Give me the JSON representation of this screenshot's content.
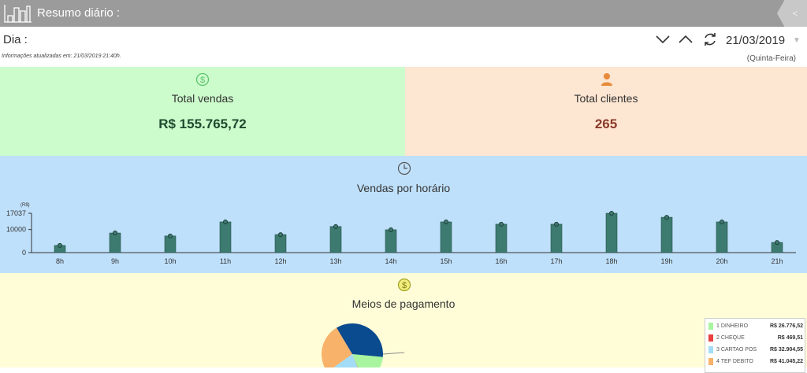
{
  "header": {
    "title": "Resumo diário :",
    "back_label": "<"
  },
  "filter": {
    "label": "Dia :",
    "updated": "Informações atualizadas em: 21/03/2019 21:40h.",
    "date": "21/03/2019",
    "weekday": "(Quinta-Feira)"
  },
  "cards": {
    "sales": {
      "label": "Total vendas",
      "value": "R$ 155.765,72",
      "icon": "dollar-circle-icon",
      "color": "#1e4a2e",
      "bg": "#ccfccc"
    },
    "clients": {
      "label": "Total clientes",
      "value": "265",
      "icon": "user-icon",
      "color": "#8b3a2a",
      "bg": "#fde6d2"
    }
  },
  "hourly": {
    "title": "Vendas por horário",
    "icon": "clock-icon",
    "bg": "#bfe0fb"
  },
  "payments": {
    "title": "Meios de pagamento",
    "icon": "dollar-circle-icon",
    "bg": "#fffdd8"
  },
  "chart_data": [
    {
      "type": "bar",
      "title": "Vendas por horário",
      "ylabel": "(R$)",
      "ylim": [
        0,
        17037
      ],
      "yticks": [
        "0",
        "10000",
        "17037"
      ],
      "categories": [
        "8h",
        "9h",
        "10h",
        "11h",
        "12h",
        "13h",
        "14h",
        "15h",
        "16h",
        "17h",
        "18h",
        "19h",
        "20h",
        "21h"
      ],
      "values": [
        3100,
        8500,
        7200,
        13300,
        7800,
        11300,
        9900,
        13300,
        12300,
        12300,
        17037,
        15300,
        13300,
        4400
      ],
      "color": "#3d7a70",
      "grid": false
    },
    {
      "type": "pie",
      "title": "Meios de pagamento",
      "total": 155765.72,
      "slices": [
        {
          "label": "1 DINHEIRO",
          "value": 26776.52,
          "display": "R$ 26.776,52",
          "color": "#a8f5a0"
        },
        {
          "label": "2 CHEQUE",
          "value": 469.51,
          "display": "R$ 469,51",
          "color": "#e84040"
        },
        {
          "label": "3 CARTAO POS",
          "value": 32904.55,
          "display": "R$ 32.904,55",
          "color": "#a3dcf7"
        },
        {
          "label": "4 TEF DEBITO",
          "value": 41045.22,
          "display": "R$ 41.045,22",
          "color": "#f8b26a"
        }
      ],
      "other_color": "#0a4a8f",
      "legend": "right"
    }
  ]
}
